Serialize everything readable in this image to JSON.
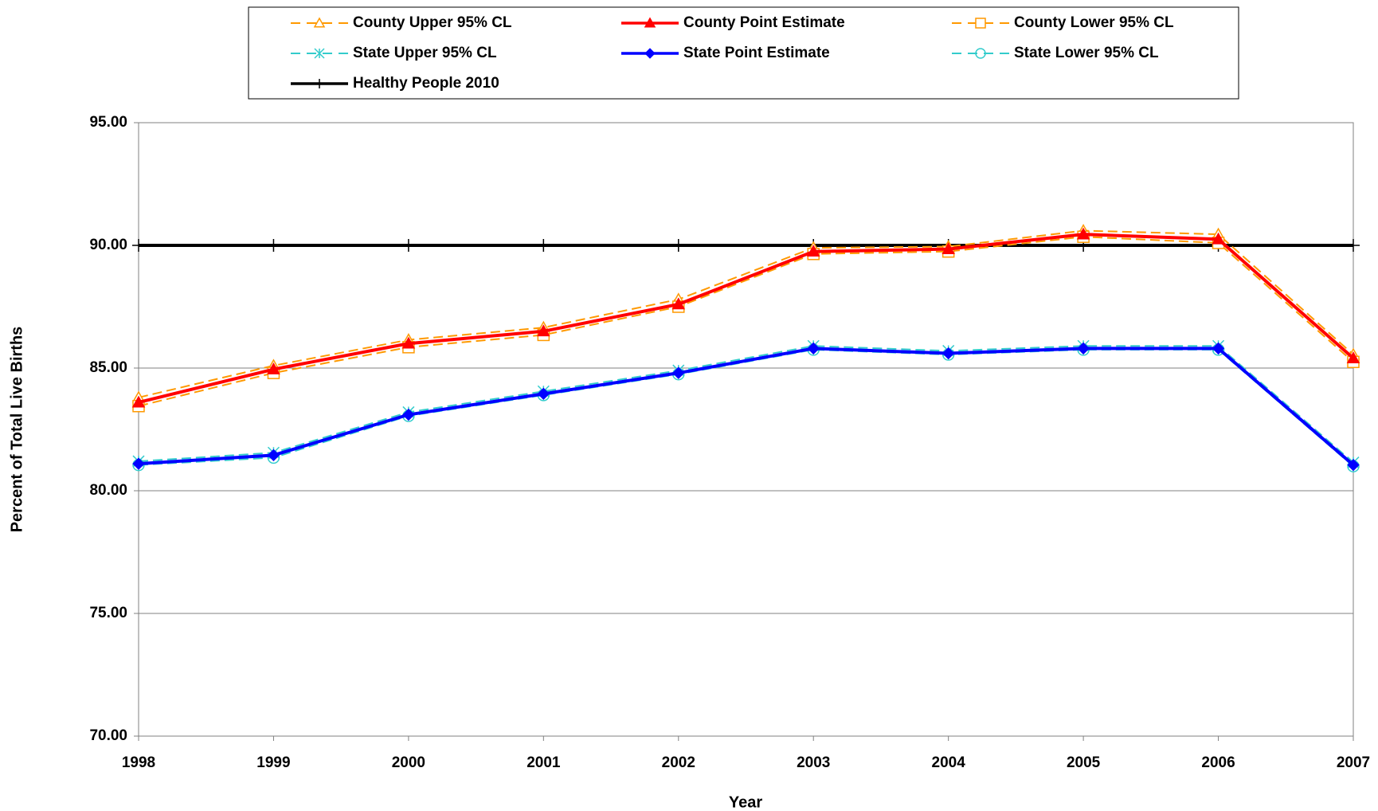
{
  "chart_data": {
    "type": "line",
    "x_label": "Year",
    "y_label": "Percent of Total Live Births",
    "categories": [
      "1998",
      "1999",
      "2000",
      "2001",
      "2002",
      "2003",
      "2004",
      "2005",
      "2006",
      "2007"
    ],
    "ylim": [
      70,
      95
    ],
    "yticks": [
      {
        "value": 70,
        "label": "70.00"
      },
      {
        "value": 75,
        "label": "75.00"
      },
      {
        "value": 80,
        "label": "80.00"
      },
      {
        "value": 85,
        "label": "85.00"
      },
      {
        "value": 90,
        "label": "90.00"
      },
      {
        "value": 95,
        "label": "95.00"
      }
    ],
    "grid": true,
    "legend": "top",
    "series": [
      {
        "name": "County Upper 95% CL",
        "color": "#ff9900",
        "dash": true,
        "marker": "triangle-open",
        "values": [
          83.8,
          85.1,
          86.15,
          86.65,
          87.8,
          89.9,
          89.95,
          90.6,
          90.45,
          85.55
        ]
      },
      {
        "name": "County Point Estimate",
        "color": "#ff0000",
        "dash": false,
        "marker": "triangle",
        "values": [
          83.6,
          84.95,
          86.0,
          86.5,
          87.6,
          89.75,
          89.85,
          90.45,
          90.25,
          85.4
        ]
      },
      {
        "name": "County Lower 95% CL",
        "color": "#ff9900",
        "dash": true,
        "marker": "square-open",
        "values": [
          83.45,
          84.8,
          85.85,
          86.35,
          87.5,
          89.65,
          89.75,
          90.35,
          90.1,
          85.25
        ]
      },
      {
        "name": "State Upper 95% CL",
        "color": "#33cccc",
        "dash": true,
        "marker": "asterisk",
        "values": [
          81.2,
          81.55,
          83.2,
          84.05,
          84.9,
          85.9,
          85.7,
          85.9,
          85.9,
          81.15
        ]
      },
      {
        "name": "State Point Estimate",
        "color": "#0000ff",
        "dash": false,
        "marker": "diamond",
        "values": [
          81.1,
          81.45,
          83.1,
          83.95,
          84.8,
          85.8,
          85.6,
          85.8,
          85.8,
          81.05
        ]
      },
      {
        "name": "State Lower 95% CL",
        "color": "#33cccc",
        "dash": true,
        "marker": "circle-open",
        "values": [
          81.05,
          81.35,
          83.05,
          83.9,
          84.75,
          85.75,
          85.55,
          85.75,
          85.75,
          81.0
        ]
      },
      {
        "name": "Healthy People 2010",
        "color": "#000000",
        "dash": false,
        "marker": "plus",
        "values": [
          90,
          90,
          90,
          90,
          90,
          90,
          90,
          90,
          90,
          90
        ]
      }
    ]
  }
}
